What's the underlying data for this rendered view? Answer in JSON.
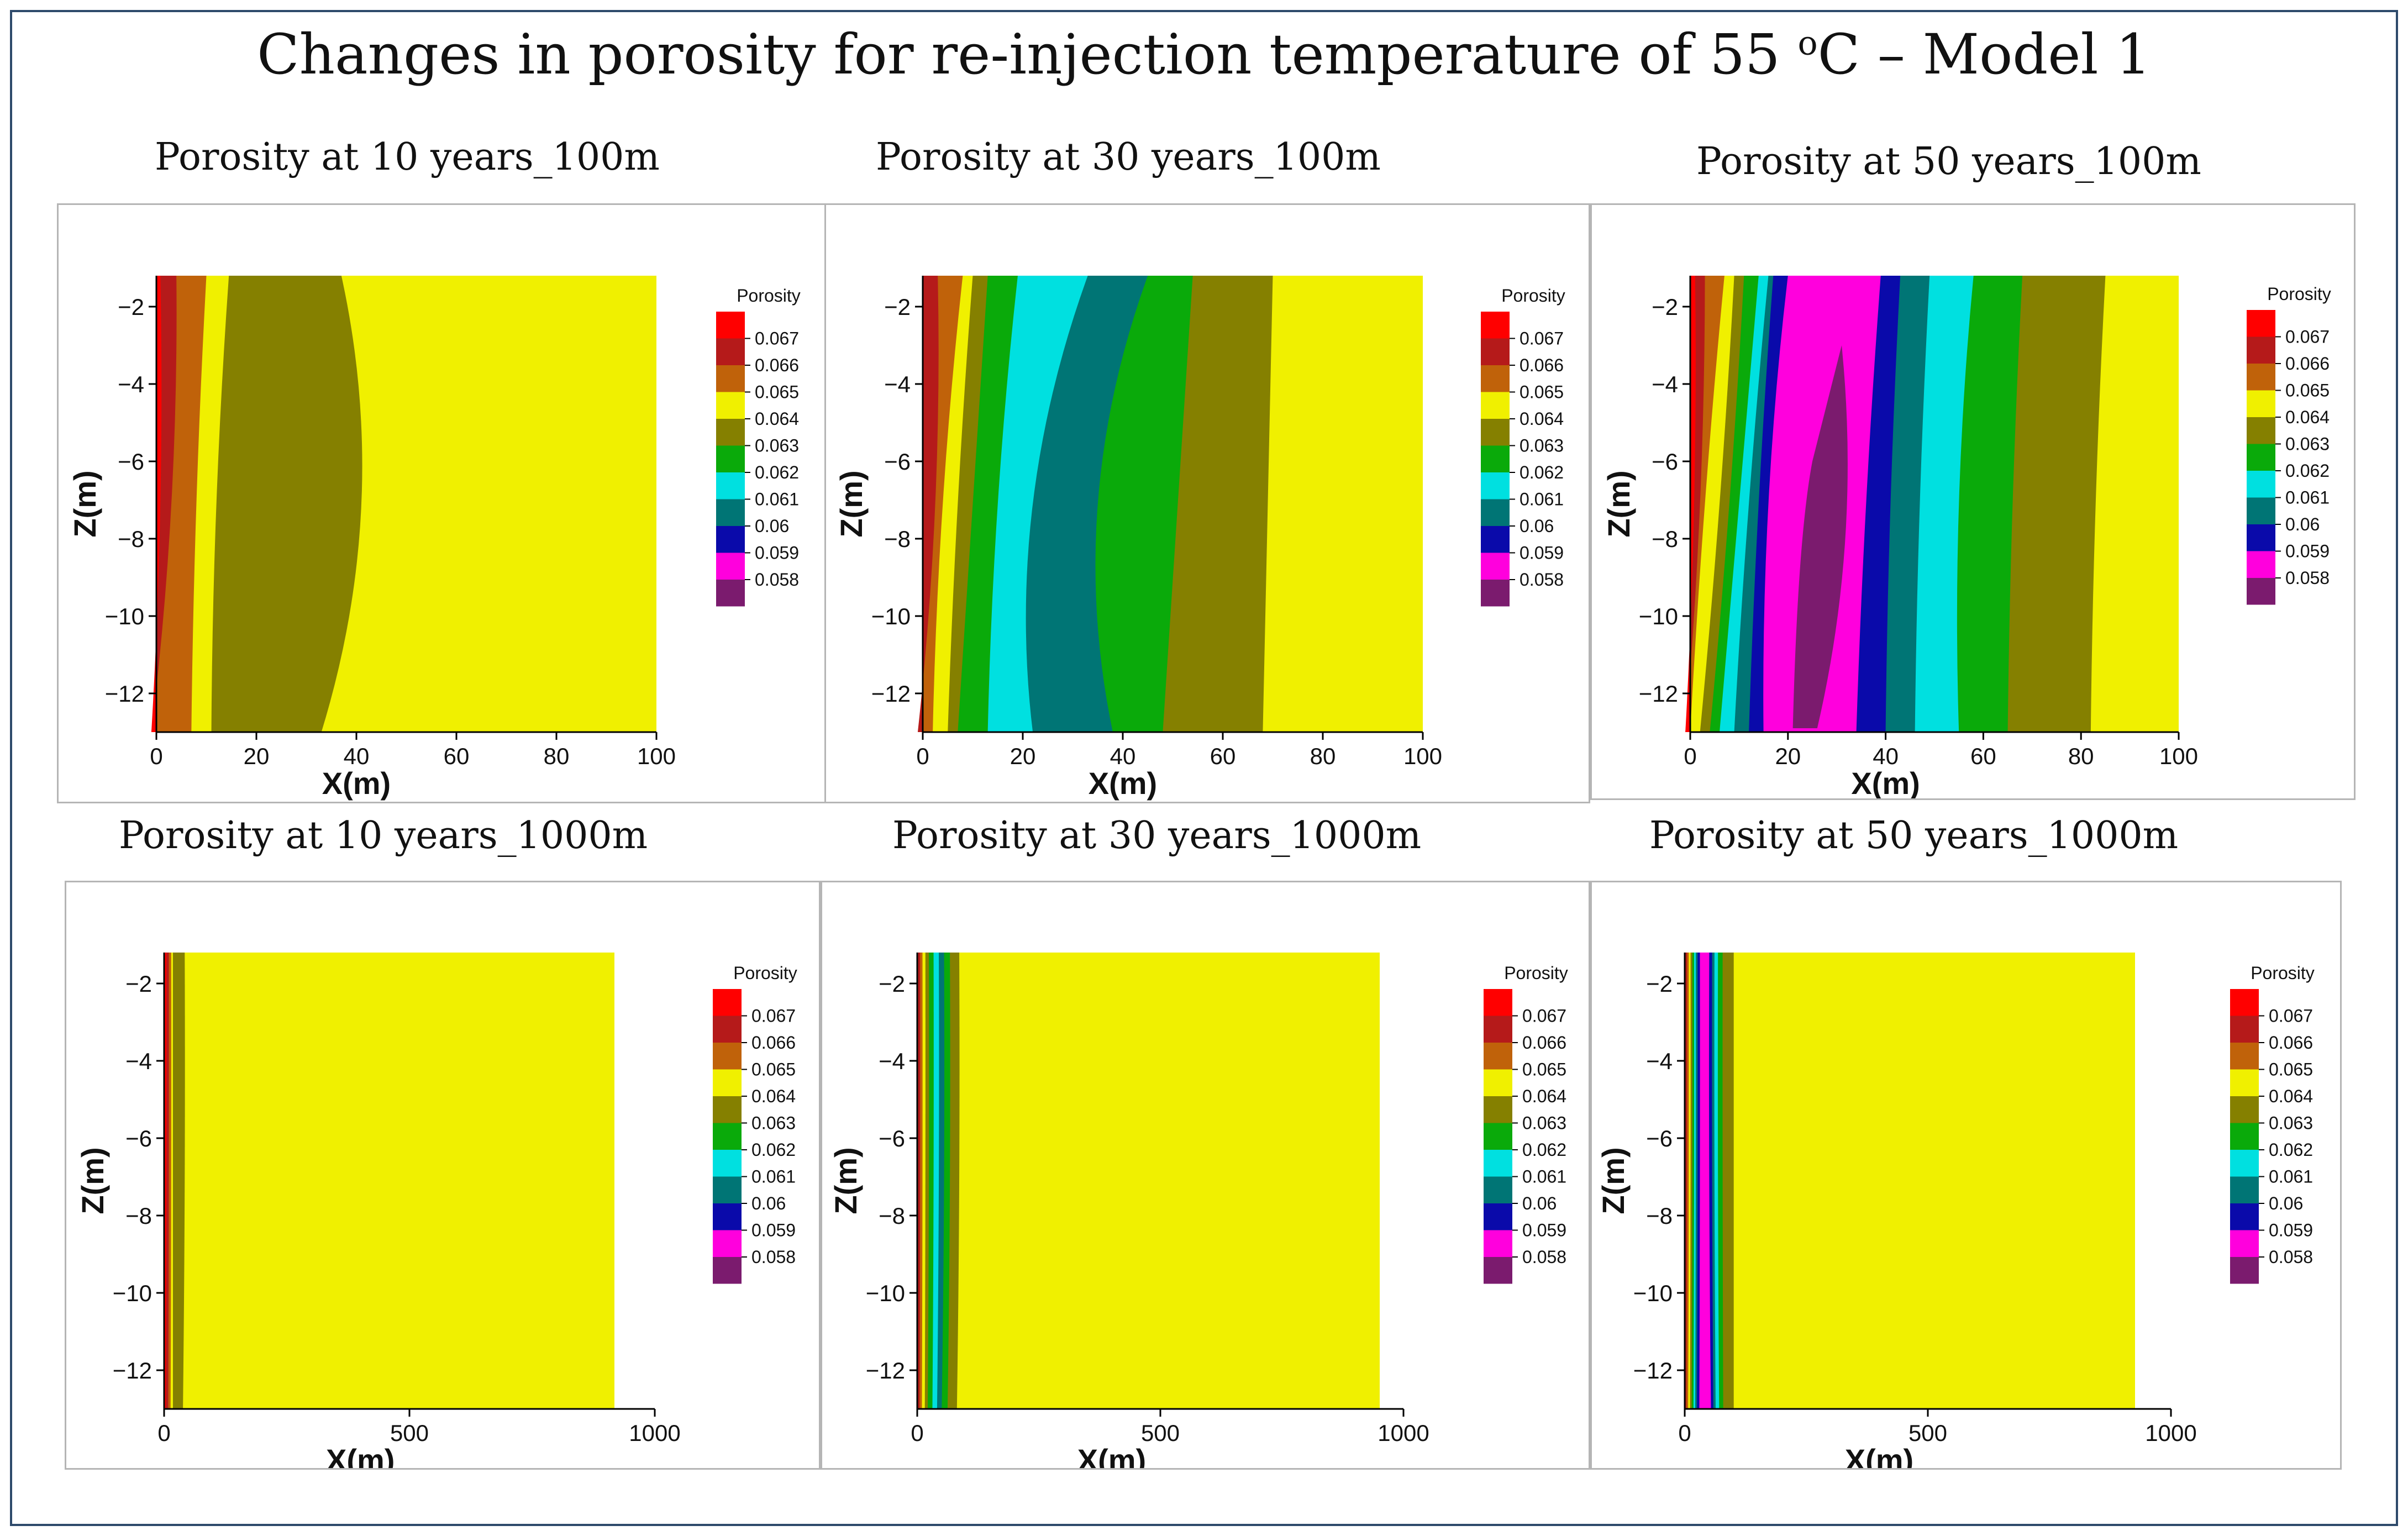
{
  "title": {
    "prefix": "Changes in porosity for re-injection temperature of 55 ",
    "degree": "o",
    "suffix": "C – Model 1"
  },
  "legend": {
    "title": "Porosity",
    "levels": [
      "0.067",
      "0.066",
      "0.065",
      "0.064",
      "0.063",
      "0.062",
      "0.061",
      "0.06",
      "0.059",
      "0.058"
    ],
    "colors": [
      "#ff0000",
      "#b51a1a",
      "#c0620a",
      "#f0f000",
      "#858000",
      "#0aaa0a",
      "#00e0e0",
      "#007575",
      "#0a0aaa",
      "#ff00dd",
      "#7b1b6e"
    ]
  },
  "chart_data": [
    {
      "type": "heatmap",
      "title": "Porosity at 10 years_100m",
      "xlabel": "X(m)",
      "ylabel": "Z(m)",
      "xlim": [
        0,
        100
      ],
      "ylim": [
        -13,
        -1.2
      ],
      "xticks": [
        "0",
        "20",
        "40",
        "60",
        "80",
        "100"
      ],
      "yticks": [
        "−2",
        "−4",
        "−6",
        "−8",
        "−10",
        "−12"
      ],
      "bands": [
        {
          "level": "0.067",
          "top": 0.8,
          "bottom": -1
        },
        {
          "level": "0.066",
          "top": 4,
          "bottom": -1
        },
        {
          "level": "0.065",
          "top": 10,
          "bottom": 7
        },
        {
          "level": "0.064",
          "top": 14.5,
          "bottom": 11
        },
        {
          "level": "0.063 (olive)",
          "top": 37,
          "bottom": 33
        }
      ]
    },
    {
      "type": "heatmap",
      "title": "Porosity at 30 years_100m",
      "xlabel": "X(m)",
      "ylabel": "Z(m)",
      "xlim": [
        0,
        100
      ],
      "ylim": [
        -13,
        -1.2
      ],
      "xticks": [
        "0",
        "20",
        "40",
        "60",
        "80",
        "100"
      ],
      "yticks": [
        "−2",
        "−4",
        "−6",
        "−8",
        "−10",
        "−12"
      ],
      "bands": [
        {
          "level": "0.066",
          "top": 3
        },
        {
          "level": "0.065",
          "top": 8
        },
        {
          "level": "0.064",
          "top": 10
        },
        {
          "level": "0.063",
          "top": 13
        },
        {
          "level": "0.062",
          "top": 19
        },
        {
          "level": "0.061",
          "top": 33
        },
        {
          "level": "0.06",
          "top": 45
        },
        {
          "level": "0.059",
          "top": 54
        },
        {
          "level": "0.058",
          "top": 69
        }
      ]
    },
    {
      "type": "heatmap",
      "title": "Porosity at 50 years_100m",
      "xlabel": "X(m)",
      "ylabel": "Z(m)",
      "xlim": [
        0,
        100
      ],
      "ylim": [
        -13,
        -1.2
      ],
      "xticks": [
        "0",
        "20",
        "40",
        "60",
        "80",
        "100"
      ],
      "yticks": [
        "−2",
        "−4",
        "−6",
        "−8",
        "−10",
        "−12"
      ]
    },
    {
      "type": "heatmap",
      "title": "Porosity at 10 years_1000m",
      "xlabel": "X(m)",
      "ylabel": "Z(m)",
      "xlim": [
        0,
        1000
      ],
      "ylim": [
        -13,
        -1.2
      ],
      "xticks": [
        "0",
        "500",
        "1000"
      ],
      "yticks": [
        "−2",
        "−4",
        "−6",
        "−8",
        "−10",
        "−12"
      ]
    },
    {
      "type": "heatmap",
      "title": "Porosity at 30 years_1000m",
      "xlabel": "X(m)",
      "ylabel": "Z(m)",
      "xlim": [
        0,
        1000
      ],
      "ylim": [
        -13,
        -1.2
      ],
      "xticks": [
        "0",
        "500",
        "1000"
      ],
      "yticks": [
        "−2",
        "−4",
        "−6",
        "−8",
        "−10",
        "−12"
      ]
    },
    {
      "type": "heatmap",
      "title": "Porosity at 50 years_1000m",
      "xlabel": "X(m)",
      "ylabel": "Z(m)",
      "xlim": [
        0,
        1000
      ],
      "ylim": [
        -13,
        -1.2
      ],
      "xticks": [
        "0",
        "500",
        "1000"
      ],
      "yticks": [
        "−2",
        "−4",
        "−6",
        "−8",
        "−10",
        "−12"
      ]
    }
  ]
}
